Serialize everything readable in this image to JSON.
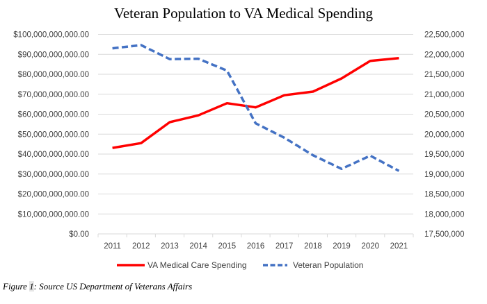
{
  "chart_data": {
    "type": "line",
    "title": "Veteran Population to VA Medical Spending",
    "categories": [
      "2011",
      "2012",
      "2013",
      "2014",
      "2015",
      "2016",
      "2017",
      "2018",
      "2019",
      "2020",
      "2021"
    ],
    "series": [
      {
        "name": "VA Medical Care Spending",
        "axis": "left",
        "color": "#ff0000",
        "style": "solid",
        "values": [
          43100000000,
          45500000000,
          56000000000,
          59400000000,
          65500000000,
          63400000000,
          69500000000,
          71300000000,
          77900000000,
          86700000000,
          88100000000
        ]
      },
      {
        "name": "Veteran Population",
        "axis": "right",
        "color": "#4472c4",
        "style": "dashed",
        "values": [
          22150000,
          22230000,
          21880000,
          21890000,
          21590000,
          20270000,
          19910000,
          19470000,
          19130000,
          19460000,
          19080000
        ]
      }
    ],
    "left_axis": {
      "ylim": [
        0,
        100000000000
      ],
      "ticks": [
        "$0.00",
        "$10,000,000,000.00",
        "$20,000,000,000.00",
        "$30,000,000,000.00",
        "$40,000,000,000.00",
        "$50,000,000,000.00",
        "$60,000,000,000.00",
        "$70,000,000,000.00",
        "$80,000,000,000.00",
        "$90,000,000,000.00",
        "$100,000,000,000.00"
      ]
    },
    "right_axis": {
      "ylim": [
        17500000,
        22500000
      ],
      "ticks": [
        "17,500,000",
        "18,000,000",
        "18,500,000",
        "19,000,000",
        "19,500,000",
        "20,000,000",
        "20,500,000",
        "21,000,000",
        "21,500,000",
        "22,000,000",
        "22,500,000"
      ]
    },
    "xlabel": "",
    "ylabel": "",
    "grid": true,
    "legend": "bottom"
  },
  "caption": {
    "prefix": "Figure ",
    "number": "1",
    "suffix": ": Source US Department of Veterans Affairs"
  }
}
